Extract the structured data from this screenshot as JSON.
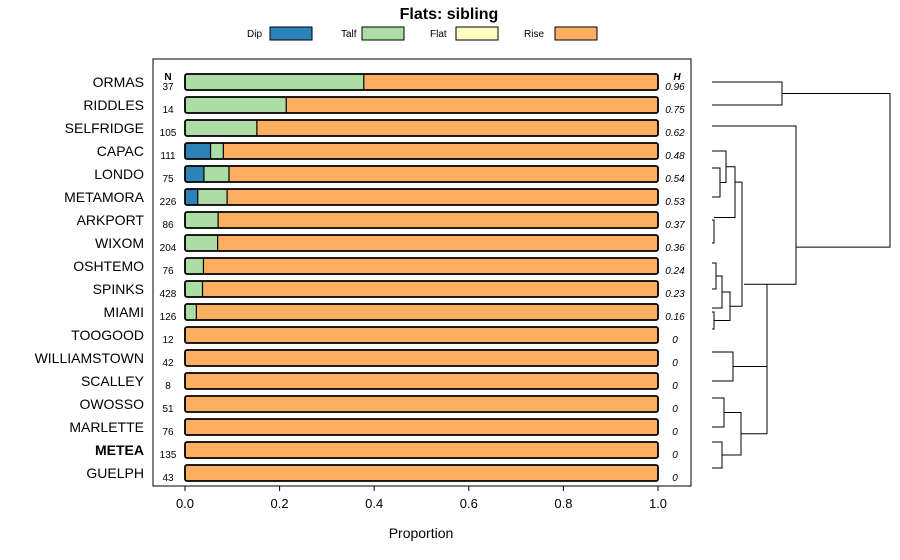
{
  "chart_data": {
    "type": "bar",
    "stacked": true,
    "title": "Flats: sibling",
    "xlabel": "Proportion",
    "xlim": [
      0,
      1
    ],
    "xticks": [
      "0.0",
      "0.2",
      "0.4",
      "0.6",
      "0.8",
      "1.0"
    ],
    "n_header": "N",
    "h_header": "H",
    "legend": [
      {
        "name": "Dip",
        "color": "#2b83ba"
      },
      {
        "name": "Talf",
        "color": "#abdda4"
      },
      {
        "name": "Flat",
        "color": "#ffffbf"
      },
      {
        "name": "Rise",
        "color": "#fdae61"
      }
    ],
    "categories": [
      "ORMAS",
      "RIDDLES",
      "SELFRIDGE",
      "CAPAC",
      "LONDO",
      "METAMORA",
      "ARKPORT",
      "WIXOM",
      "OSHTEMO",
      "SPINKS",
      "MIAMI",
      "TOOGOOD",
      "WILLIAMSTOWN",
      "SCALLEY",
      "OWOSSO",
      "MARLETTE",
      "METEA",
      "GUELPH"
    ],
    "bold_categories": [
      "METEA"
    ],
    "series": [
      {
        "name": "Dip",
        "values": [
          0,
          0,
          0,
          0.054,
          0.04,
          0.027,
          0,
          0,
          0,
          0,
          0,
          0,
          0,
          0,
          0,
          0,
          0,
          0
        ]
      },
      {
        "name": "Talf",
        "values": [
          0.378,
          0.214,
          0.152,
          0.027,
          0.053,
          0.062,
          0.07,
          0.069,
          0.039,
          0.037,
          0.024,
          0,
          0,
          0,
          0,
          0,
          0,
          0
        ]
      },
      {
        "name": "Flat",
        "values": [
          0,
          0,
          0,
          0,
          0,
          0,
          0,
          0,
          0,
          0,
          0,
          0,
          0,
          0,
          0,
          0,
          0,
          0
        ]
      },
      {
        "name": "Rise",
        "values": [
          0.622,
          0.786,
          0.848,
          0.919,
          0.907,
          0.911,
          0.93,
          0.931,
          0.961,
          0.963,
          0.976,
          1,
          1,
          1,
          1,
          1,
          1,
          1
        ]
      }
    ],
    "n_values": [
      "37",
      "14",
      "105",
      "111",
      "75",
      "226",
      "86",
      "204",
      "76",
      "428",
      "126",
      "12",
      "42",
      "8",
      "51",
      "76",
      "135",
      "43"
    ],
    "h_values": [
      "0.96",
      "0.75",
      "0.62",
      "0.48",
      "0.54",
      "0.53",
      "0.37",
      "0.36",
      "0.24",
      "0.23",
      "0.16",
      "0",
      "0",
      "0",
      "0",
      "0",
      "0",
      "0"
    ]
  }
}
